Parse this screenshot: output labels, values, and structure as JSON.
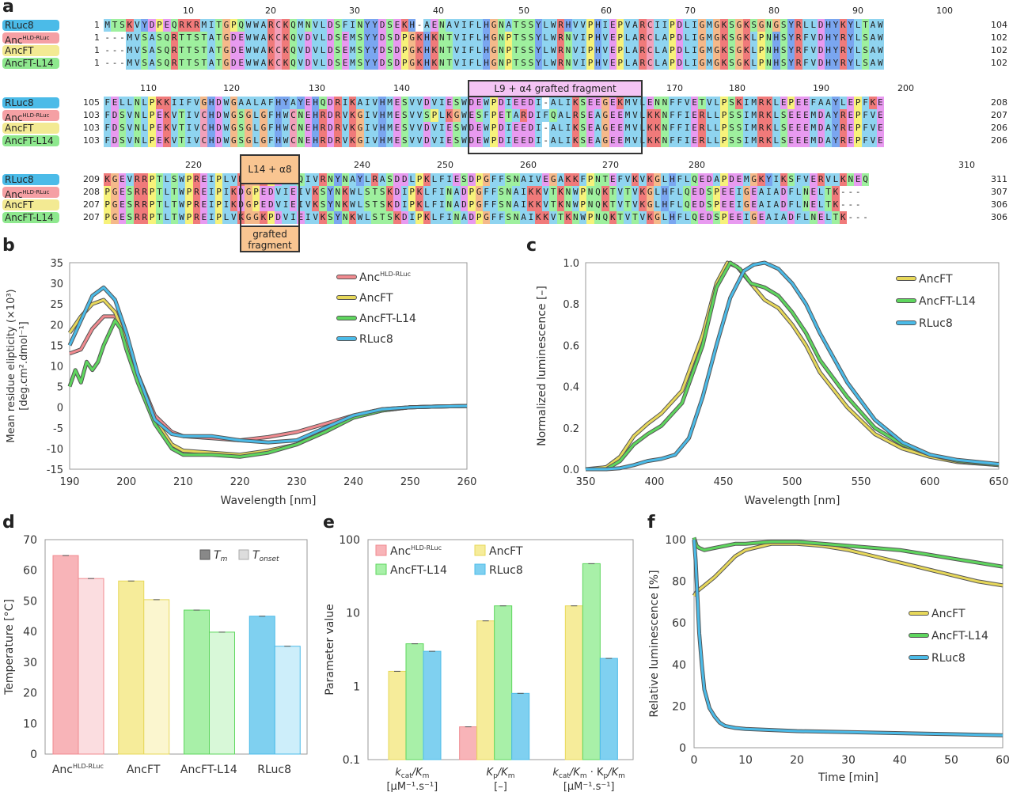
{
  "panels": {
    "a": "a",
    "b": "b",
    "c": "c",
    "d": "d",
    "e": "e",
    "f": "f"
  },
  "colors": {
    "rluc8": "#4bbbe8",
    "anc_hld": "#f08a8f",
    "ancft": "#e7d85a",
    "ancft_l14": "#5ed65e",
    "frag_l9_bg": "#f4c4f4",
    "frag_l14_bg": "#f9c591"
  },
  "alignment": {
    "fragments": {
      "l9_label": "L9 + α4 grafted fragment",
      "l14_label": "L14 + α8",
      "l14_sub": "grafted fragment"
    },
    "blocks": [
      {
        "ticks": [
          "10",
          "20",
          "30",
          "40",
          "50",
          "60",
          "70",
          "80",
          "90",
          "100"
        ],
        "rows": [
          {
            "name": "RLuc8",
            "name_sup": "",
            "start": "1",
            "end": "104",
            "seq": "MTSKVYDPEQRKRMITGPQWWARCKQMNVLDSFINYYDSEKH-AENAVIFLHGNATSSYLWRHVVPHIEPVARCIIPDLIGMGKSGKSGNGSYRLLDHYKYLTAW"
          },
          {
            "name": "Anc",
            "name_sup": "HLD-RLuc",
            "start": "1",
            "end": "102",
            "seq": "---MVSASQRTTSTATGDEWWAKCKQVDVLDSEMSYYDSDPGKHKNTVIFLHGNPTSSYLWRNVIPHVEPLARCLAPDLIGMGKSGKLPNHSYRFVDHYRYLSAW"
          },
          {
            "name": "AncFT",
            "name_sup": "",
            "start": "1",
            "end": "102",
            "seq": "---MVSASQRTTSTATGDEWWAKCKQVDVLDSEMSYYDSDPGKHKNTVIFLHGNPTSSYLWRNVIPHVEPLARCLAPDLIGMGKSGKLPNHSYRFVDHYRYLSAW"
          },
          {
            "name": "AncFT-L14",
            "name_sup": "",
            "start": "1",
            "end": "102",
            "seq": "---MVSASQRTTSTATGDEWWAKCKQVDVLDSEMSYYDSDPGKHKNTVIFLHGNPTSSYLWRNVIPHVEPLARCLAPDLIGMGKSGKLPNHSYRFVDHYRYLSAW"
          }
        ]
      },
      {
        "ticks": [
          "110",
          "120",
          "130",
          "140",
          "170",
          "180",
          "190",
          "200"
        ],
        "rows": [
          {
            "name": "RLuc8",
            "name_sup": "",
            "start": "105",
            "end": "208",
            "seq": "FELLNLPKKIIFVGHDWGAALAFHYAYEHQDRIKAIVHMESVVDVIESWDEWPDIEEDI-ALIKSEEGEKMVLENNFFVETVLPSKIMRKLEPEEFAAYLEPFKE"
          },
          {
            "name": "Anc",
            "name_sup": "HLD-RLuc",
            "start": "103",
            "end": "207",
            "seq": "FDSVNLPEKVTIVCHDWGSGLGFHWCNEHRDRVKGIVHMESVVSPLKGWESFPETARDIFQALRSEAGEEMVLKKNFFIERLLPSSIMRKLSEEEMDAYREPFVE"
          },
          {
            "name": "AncFT",
            "name_sup": "",
            "start": "103",
            "end": "206",
            "seq": "FDSVNLPEKVTIVCHDWGSGLGFHWCNEHRDRVKGIVHMESVVDVIESWDEWPDIEEDI-ALIKSEAGEEMVLKKNFFIERLLPSSIMRKLSEEEMDAYREPFVE"
          },
          {
            "name": "AncFT-L14",
            "name_sup": "",
            "start": "103",
            "end": "206",
            "seq": "FDSVNLPEKVTIVCHDWGSGLGFHWCNEHRDRVKGIVHMESVVDVIESWDEWPDIEEDI-ALIKSEAGEEMVLKKNFFIERLLPSSIMRKLSEEEMDAYREPFVE"
          }
        ]
      },
      {
        "ticks": [
          "220",
          "240",
          "250",
          "260",
          "270",
          "280",
          "310"
        ],
        "rows": [
          {
            "name": "RLuc8",
            "name_sup": "",
            "start": "209",
            "end": "311",
            "seq": "KGEVRRPTLSWPREIPLVKGGKPDVVQIVRNYNAYLRASDDLPKLFIESDPGFFSNAIVEGAKKFPNTEFVKVKGLHFLQEDAPDEMGKYIKSFVERVLKNEQ"
          },
          {
            "name": "Anc",
            "name_sup": "HLD-RLuc",
            "start": "208",
            "end": "307",
            "seq": "PGESRRPTLTWPREIPIKDGPEDVIEIVKSYNKWLSTSKDIPKLFINADPGFFSNAIKKVTKNWPNQKTVTVKGLHFLQEDSPEEIGEAIADFLNELTK---"
          },
          {
            "name": "AncFT",
            "name_sup": "",
            "start": "207",
            "end": "306",
            "seq": "PGESRRPTLTWPREIPIKDGPEDVIEIVKSYNKWLSTSKDIPKLFINADPGFFSNAIKKVTKNWPNQKTVTVKGLHFLQEDSPEEIGEAIADFLNELTK---"
          },
          {
            "name": "AncFT-L14",
            "name_sup": "",
            "start": "207",
            "end": "306",
            "seq": "PGESRRPTLTWPREIPLVKGGKPDVIEIVKSYNKWLSTSKDIPKLFINADPGFFSNAIKKVTKNWPNQKTVTVKGLHFLQEDSPEEIGEAIADFLNELTK---"
          }
        ]
      }
    ]
  },
  "chart_b": {
    "type": "line",
    "xlabel": "Wavelength [nm]",
    "ylabel_1": "Mean residue elipticity (×10³)",
    "ylabel_2": "[deg.cm².dmol⁻¹]",
    "xlim": [
      190,
      260
    ],
    "ylim": [
      -15,
      35
    ],
    "xticks": [
      "190",
      "200",
      "210",
      "220",
      "230",
      "240",
      "250",
      "260"
    ],
    "yticks": [
      "-15",
      "-10",
      "-5",
      "0",
      "5",
      "10",
      "15",
      "20",
      "25",
      "30",
      "35"
    ],
    "legend": [
      "Anc",
      "AncFT",
      "AncFT-L14",
      "RLuc8"
    ],
    "legend_sup": "HLD-RLuc",
    "series": [
      {
        "name": "AncHLD-RLuc",
        "x": [
          190,
          192,
          194,
          196,
          198,
          200,
          202,
          205,
          208,
          210,
          215,
          220,
          225,
          230,
          235,
          240,
          245,
          250,
          255,
          260
        ],
        "y": [
          13,
          14,
          19,
          22,
          22,
          16,
          8,
          -2,
          -6,
          -7,
          -7.5,
          -8,
          -7.2,
          -6,
          -4,
          -2,
          -0.5,
          0,
          0.2,
          0.3
        ]
      },
      {
        "name": "AncFT",
        "x": [
          190,
          192,
          194,
          196,
          198,
          200,
          202,
          205,
          208,
          210,
          215,
          220,
          225,
          230,
          235,
          240,
          245,
          250,
          255,
          260
        ],
        "y": [
          18,
          22,
          25,
          26,
          23,
          16,
          8,
          -3,
          -9,
          -10.5,
          -11,
          -11.5,
          -10.5,
          -9,
          -6,
          -2.5,
          -0.8,
          0,
          0.2,
          0.3
        ]
      },
      {
        "name": "AncFT-L14",
        "x": [
          190,
          191,
          192,
          193,
          194,
          195,
          196,
          197,
          198,
          199,
          200,
          202,
          205,
          208,
          210,
          215,
          220,
          225,
          230,
          235,
          240,
          245,
          250,
          255,
          260
        ],
        "y": [
          5,
          9,
          6,
          11,
          9,
          11,
          15,
          18,
          21,
          19,
          14,
          6,
          -4,
          -10,
          -11.5,
          -11.5,
          -12,
          -11,
          -9,
          -6,
          -2.5,
          -0.8,
          0,
          0.2,
          0.3
        ]
      },
      {
        "name": "RLuc8",
        "x": [
          190,
          192,
          194,
          196,
          198,
          200,
          202,
          205,
          208,
          210,
          215,
          220,
          225,
          230,
          235,
          240,
          245,
          250,
          255,
          260
        ],
        "y": [
          15,
          21,
          27,
          29,
          26,
          18,
          8,
          -3,
          -6.5,
          -7,
          -7,
          -8,
          -8.5,
          -8,
          -5,
          -2,
          -0.5,
          0,
          0.2,
          0.3
        ]
      }
    ]
  },
  "chart_c": {
    "type": "line",
    "xlabel": "Wavelength [nm]",
    "ylabel": "Normalized luminescence [–]",
    "xlim": [
      350,
      650
    ],
    "ylim": [
      0,
      1
    ],
    "xticks": [
      "350",
      "400",
      "450",
      "500",
      "550",
      "600",
      "650"
    ],
    "yticks": [
      "0.0",
      "0.2",
      "0.4",
      "0.6",
      "0.8",
      "1.0"
    ],
    "legend": [
      "AncFT",
      "AncFT-L14",
      "RLuc8"
    ],
    "series": [
      {
        "name": "AncFT",
        "x": [
          350,
          365,
          375,
          385,
          395,
          405,
          420,
          435,
          445,
          453,
          460,
          470,
          480,
          490,
          500,
          510,
          520,
          540,
          560,
          580,
          600,
          620,
          650
        ],
        "y": [
          0,
          0.01,
          0.06,
          0.16,
          0.22,
          0.27,
          0.38,
          0.65,
          0.9,
          1.0,
          0.98,
          0.9,
          0.82,
          0.78,
          0.7,
          0.6,
          0.47,
          0.3,
          0.17,
          0.1,
          0.06,
          0.035,
          0.02
        ]
      },
      {
        "name": "AncFT-L14",
        "x": [
          350,
          365,
          375,
          385,
          395,
          405,
          420,
          435,
          445,
          455,
          462,
          470,
          480,
          490,
          500,
          510,
          520,
          540,
          560,
          580,
          600,
          620,
          650
        ],
        "y": [
          0,
          0.0,
          0.04,
          0.12,
          0.17,
          0.21,
          0.32,
          0.6,
          0.88,
          1.0,
          0.97,
          0.9,
          0.88,
          0.84,
          0.76,
          0.66,
          0.53,
          0.35,
          0.2,
          0.12,
          0.07,
          0.04,
          0.02
        ]
      },
      {
        "name": "RLuc8",
        "x": [
          350,
          365,
          375,
          385,
          395,
          405,
          415,
          425,
          435,
          445,
          455,
          465,
          472,
          480,
          490,
          500,
          510,
          520,
          540,
          560,
          580,
          600,
          620,
          650
        ],
        "y": [
          0,
          0.0,
          0.005,
          0.02,
          0.04,
          0.05,
          0.07,
          0.15,
          0.35,
          0.6,
          0.83,
          0.96,
          0.99,
          1.0,
          0.97,
          0.9,
          0.8,
          0.66,
          0.42,
          0.24,
          0.13,
          0.07,
          0.045,
          0.025
        ]
      }
    ]
  },
  "chart_d": {
    "type": "bar",
    "ylabel": "Temperature [°C]",
    "ylim": [
      0,
      70
    ],
    "yticks": [
      "0",
      "10",
      "20",
      "30",
      "40",
      "50",
      "60",
      "70"
    ],
    "categories": [
      "Anc",
      "AncFT",
      "AncFT-L14",
      "RLuc8"
    ],
    "cat_sup": "HLD-RLuc",
    "legend": {
      "tm": "T",
      "tm_sub": "m",
      "tonset": "T",
      "tonset_sub": "onset"
    },
    "series": [
      {
        "name": "Tm",
        "values": [
          64.8,
          56.5,
          47,
          45
        ]
      },
      {
        "name": "Tonset",
        "values": [
          57.3,
          50.4,
          39.8,
          35.2
        ]
      }
    ]
  },
  "chart_e": {
    "type": "bar",
    "scale": "log",
    "ylabel": "Parameter value",
    "ylim": [
      0.1,
      100
    ],
    "yticks": [
      "0.1",
      "1",
      "10",
      "100"
    ],
    "groups": [
      {
        "label_1": "k",
        "label_1_sub": "cat",
        "label_1_rest": "/K",
        "label_1_sub2": "m",
        "label_2": "[μM⁻¹.s⁻¹]"
      },
      {
        "label_1": "K",
        "label_1_sub": "p",
        "label_1_rest": "/K",
        "label_1_sub2": "m",
        "label_2": "[–]"
      },
      {
        "label_1": "k",
        "label_1_sub": "cat",
        "label_1_rest": "/K",
        "label_1_sub2": "m",
        "label_extra": " · K",
        "label_extra_sub": "p",
        "label_extra_rest": "/K",
        "label_extra_sub2": "m",
        "label_2": "[μM⁻¹.s⁻¹]"
      }
    ],
    "legend": [
      "Anc",
      "AncFT",
      "AncFT-L14",
      "RLuc8"
    ],
    "legend_sup": "HLD-RLuc",
    "series": [
      {
        "name": "AncHLD-RLuc",
        "values": [
          0.1,
          0.28,
          0.1
        ]
      },
      {
        "name": "AncFT",
        "values": [
          1.6,
          7.8,
          12.5
        ]
      },
      {
        "name": "AncFT-L14",
        "values": [
          3.8,
          12.5,
          47
        ]
      },
      {
        "name": "RLuc8",
        "values": [
          3.0,
          0.8,
          2.4
        ]
      }
    ]
  },
  "chart_f": {
    "type": "line",
    "xlabel": "Time [min]",
    "ylabel": "Relative luminescence [%]",
    "xlim": [
      0,
      60
    ],
    "ylim": [
      0,
      100
    ],
    "xticks": [
      "0",
      "10",
      "20",
      "30",
      "40",
      "50",
      "60"
    ],
    "yticks": [
      "0",
      "20",
      "40",
      "60",
      "80",
      "100"
    ],
    "legend": [
      "AncFT",
      "AncFT-L14",
      "RLuc8"
    ],
    "series": [
      {
        "name": "AncFT",
        "x": [
          0,
          0.5,
          1,
          2,
          4,
          6,
          8,
          10,
          15,
          20,
          25,
          30,
          35,
          40,
          45,
          50,
          55,
          60
        ],
        "y": [
          73,
          75,
          76,
          78,
          82,
          87,
          92,
          95,
          98,
          98,
          97,
          95,
          92,
          89,
          86,
          83,
          80,
          78
        ]
      },
      {
        "name": "AncFT-L14",
        "x": [
          0,
          0.5,
          1,
          2,
          4,
          6,
          8,
          10,
          15,
          20,
          25,
          30,
          35,
          40,
          45,
          50,
          55,
          60
        ],
        "y": [
          101,
          97,
          96,
          95,
          96,
          97,
          98,
          98,
          99,
          99,
          98,
          97,
          96,
          95,
          93,
          91,
          89,
          87
        ]
      },
      {
        "name": "RLuc8",
        "x": [
          0,
          0.3,
          0.6,
          1,
          1.5,
          2,
          3,
          4,
          5,
          6,
          8,
          10,
          15,
          20,
          30,
          40,
          50,
          60
        ],
        "y": [
          100,
          90,
          75,
          55,
          40,
          28,
          19,
          15,
          12,
          10.5,
          9.5,
          9,
          8.5,
          8,
          7.5,
          7,
          6.5,
          6
        ]
      }
    ]
  }
}
